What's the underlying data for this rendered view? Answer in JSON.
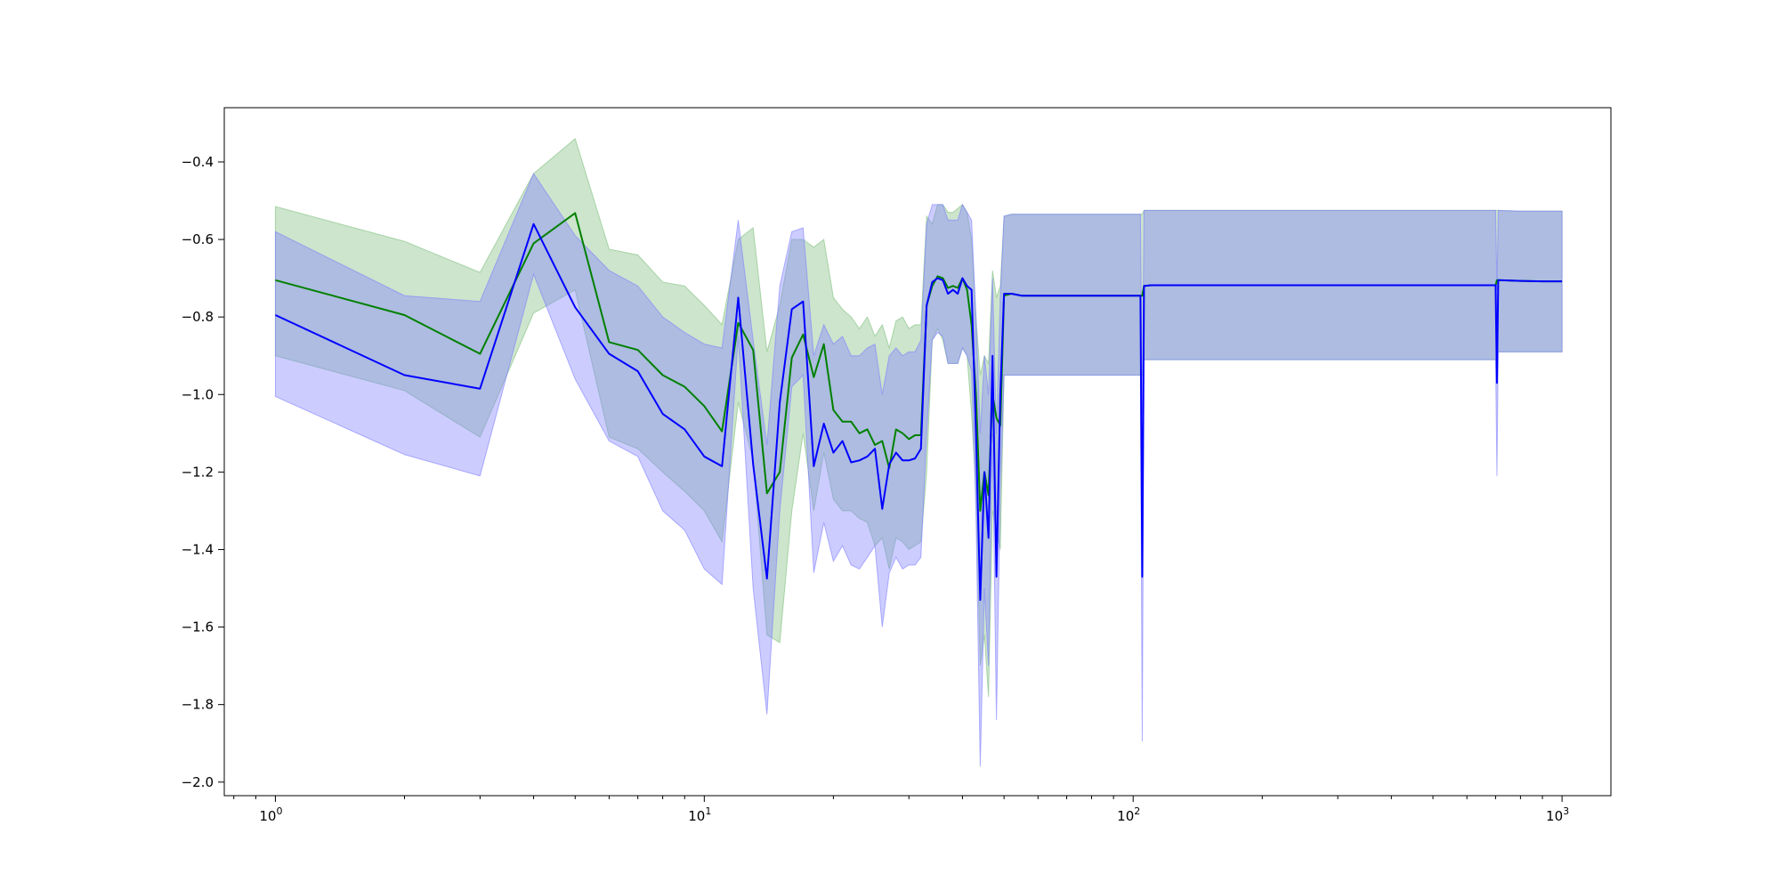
{
  "chart_data": {
    "type": "line",
    "title": "",
    "xlabel": "",
    "ylabel": "",
    "xscale": "log",
    "xlim": [
      0.76,
      1300
    ],
    "ylim": [
      -2.035,
      -0.26
    ],
    "grid": false,
    "legend": "none",
    "x_ticks": [
      {
        "value": 1,
        "base": "10",
        "exp": "0"
      },
      {
        "value": 10,
        "base": "10",
        "exp": "1"
      },
      {
        "value": 100,
        "base": "10",
        "exp": "2"
      },
      {
        "value": 1000,
        "base": "10",
        "exp": "3"
      }
    ],
    "y_ticks": [
      {
        "value": -0.4,
        "label": "−0.4"
      },
      {
        "value": -0.6,
        "label": "−0.6"
      },
      {
        "value": -0.8,
        "label": "−0.8"
      },
      {
        "value": -1.0,
        "label": "−1.0"
      },
      {
        "value": -1.2,
        "label": "−1.2"
      },
      {
        "value": -1.4,
        "label": "−1.4"
      },
      {
        "value": -1.6,
        "label": "−1.6"
      },
      {
        "value": -1.8,
        "label": "−1.8"
      },
      {
        "value": -2.0,
        "label": "−2.0"
      }
    ],
    "series": [
      {
        "color": "#008000",
        "band_color": "#7fbf7f",
        "band_opacity": 0.4,
        "x": [
          1,
          2,
          3,
          4,
          5,
          6,
          7,
          8,
          9,
          10,
          11,
          12,
          13,
          14,
          15,
          16,
          17,
          18,
          19,
          20,
          21,
          22,
          23,
          24,
          25,
          26,
          27,
          28,
          29,
          30,
          31,
          32,
          33,
          34,
          35,
          36,
          37,
          38,
          39,
          40,
          41,
          42,
          43,
          44,
          45,
          46,
          47,
          48,
          49,
          50,
          52,
          55,
          60,
          70,
          80,
          90,
          100,
          104,
          105,
          106,
          110,
          150,
          200,
          300,
          400,
          500,
          600,
          700,
          705,
          710,
          800,
          900,
          1000
        ],
        "y": [
          -0.705,
          -0.795,
          -0.895,
          -0.61,
          -0.532,
          -0.865,
          -0.885,
          -0.95,
          -0.98,
          -1.03,
          -1.095,
          -0.815,
          -0.885,
          -1.255,
          -1.2,
          -0.905,
          -0.845,
          -0.955,
          -0.87,
          -1.04,
          -1.07,
          -1.07,
          -1.1,
          -1.09,
          -1.13,
          -1.12,
          -1.19,
          -1.09,
          -1.1,
          -1.115,
          -1.105,
          -1.105,
          -0.77,
          -0.72,
          -0.695,
          -0.7,
          -0.725,
          -0.72,
          -0.725,
          -0.7,
          -0.73,
          -0.82,
          -1.0,
          -1.3,
          -1.2,
          -1.26,
          -1.0,
          -1.06,
          -1.08,
          -0.745,
          -0.74,
          -0.745,
          -0.745,
          -0.745,
          -0.745,
          -0.745,
          -0.745,
          -0.745,
          -0.745,
          -0.72,
          -0.718,
          -0.718,
          -0.718,
          -0.718,
          -0.718,
          -0.718,
          -0.718,
          -0.718,
          -0.705,
          -0.705,
          -0.707,
          -0.708,
          -0.708
        ],
        "lower": [
          -0.9,
          -0.99,
          -1.11,
          -0.79,
          -0.73,
          -1.11,
          -1.14,
          -1.2,
          -1.25,
          -1.3,
          -1.38,
          -1.02,
          -1.17,
          -1.62,
          -1.64,
          -1.3,
          -1.1,
          -1.3,
          -1.15,
          -1.27,
          -1.3,
          -1.3,
          -1.32,
          -1.33,
          -1.39,
          -1.37,
          -1.45,
          -1.37,
          -1.38,
          -1.4,
          -1.39,
          -1.38,
          -1.2,
          -0.86,
          -0.83,
          -0.86,
          -0.92,
          -0.92,
          -0.92,
          -0.88,
          -0.9,
          -1.05,
          -1.25,
          -1.7,
          -1.62,
          -1.78,
          -1.3,
          -1.35,
          -1.4,
          -0.95,
          -0.95,
          -0.95,
          -0.95,
          -0.95,
          -0.95,
          -0.95,
          -0.95,
          -0.95,
          -0.95,
          -0.91,
          -0.91,
          -0.91,
          -0.91,
          -0.91,
          -0.91,
          -0.91,
          -0.91,
          -0.91,
          -0.89,
          -0.89,
          -0.89,
          -0.89,
          -0.89
        ],
        "upper": [
          -0.515,
          -0.605,
          -0.685,
          -0.43,
          -0.34,
          -0.625,
          -0.64,
          -0.71,
          -0.72,
          -0.77,
          -0.82,
          -0.6,
          -0.57,
          -0.89,
          -0.77,
          -0.6,
          -0.6,
          -0.62,
          -0.6,
          -0.75,
          -0.78,
          -0.8,
          -0.83,
          -0.8,
          -0.85,
          -0.82,
          -0.88,
          -0.81,
          -0.8,
          -0.83,
          -0.82,
          -0.82,
          -0.54,
          -0.56,
          -0.51,
          -0.51,
          -0.53,
          -0.53,
          -0.52,
          -0.51,
          -0.53,
          -0.6,
          -0.8,
          -0.95,
          -0.9,
          -0.92,
          -0.68,
          -0.75,
          -0.72,
          -0.54,
          -0.535,
          -0.535,
          -0.535,
          -0.535,
          -0.535,
          -0.535,
          -0.535,
          -0.535,
          -0.535,
          -0.525,
          -0.525,
          -0.525,
          -0.525,
          -0.525,
          -0.525,
          -0.525,
          -0.525,
          -0.525,
          -0.525,
          -0.525,
          -0.527,
          -0.527,
          -0.527
        ]
      },
      {
        "color": "#0000ff",
        "band_color": "#7f7fff",
        "band_opacity": 0.4,
        "x": [
          1,
          2,
          3,
          4,
          5,
          6,
          7,
          8,
          9,
          10,
          11,
          12,
          13,
          14,
          15,
          16,
          17,
          18,
          19,
          20,
          21,
          22,
          23,
          24,
          25,
          26,
          27,
          28,
          29,
          30,
          31,
          32,
          33,
          34,
          35,
          36,
          37,
          38,
          39,
          40,
          41,
          42,
          43,
          44,
          45,
          46,
          47,
          48,
          49,
          50,
          52,
          55,
          60,
          70,
          80,
          90,
          100,
          104,
          105,
          106,
          110,
          150,
          200,
          300,
          400,
          500,
          600,
          700,
          705,
          710,
          800,
          900,
          1000
        ],
        "y": [
          -0.795,
          -0.95,
          -0.985,
          -0.56,
          -0.775,
          -0.895,
          -0.94,
          -1.05,
          -1.09,
          -1.16,
          -1.185,
          -0.75,
          -1.18,
          -1.475,
          -1.02,
          -0.78,
          -0.76,
          -1.185,
          -1.075,
          -1.15,
          -1.12,
          -1.175,
          -1.17,
          -1.16,
          -1.14,
          -1.295,
          -1.18,
          -1.15,
          -1.17,
          -1.17,
          -1.165,
          -1.14,
          -0.77,
          -0.71,
          -0.7,
          -0.705,
          -0.74,
          -0.73,
          -0.74,
          -0.7,
          -0.72,
          -0.73,
          -1.1,
          -1.53,
          -1.2,
          -1.37,
          -0.9,
          -1.47,
          -1.0,
          -0.74,
          -0.74,
          -0.745,
          -0.745,
          -0.745,
          -0.745,
          -0.745,
          -0.745,
          -0.745,
          -1.47,
          -0.72,
          -0.718,
          -0.718,
          -0.718,
          -0.718,
          -0.718,
          -0.718,
          -0.718,
          -0.718,
          -0.97,
          -0.705,
          -0.707,
          -0.708,
          -0.708
        ],
        "lower": [
          -1.005,
          -1.155,
          -1.21,
          -0.69,
          -0.96,
          -1.12,
          -1.16,
          -1.3,
          -1.35,
          -1.45,
          -1.49,
          -0.85,
          -1.5,
          -1.825,
          -1.3,
          -0.98,
          -0.95,
          -1.46,
          -1.33,
          -1.43,
          -1.39,
          -1.44,
          -1.45,
          -1.42,
          -1.39,
          -1.6,
          -1.46,
          -1.42,
          -1.45,
          -1.44,
          -1.44,
          -1.42,
          -1.1,
          -0.86,
          -0.84,
          -0.85,
          -0.92,
          -0.92,
          -0.92,
          -0.88,
          -0.9,
          -0.94,
          -1.3,
          -1.96,
          -1.5,
          -1.7,
          -1.1,
          -1.84,
          -1.25,
          -0.95,
          -0.95,
          -0.95,
          -0.95,
          -0.95,
          -0.95,
          -0.95,
          -0.95,
          -0.95,
          -1.895,
          -0.91,
          -0.91,
          -0.91,
          -0.91,
          -0.91,
          -0.91,
          -0.91,
          -0.91,
          -0.91,
          -1.21,
          -0.89,
          -0.89,
          -0.89,
          -0.89
        ],
        "upper": [
          -0.58,
          -0.745,
          -0.76,
          -0.43,
          -0.59,
          -0.68,
          -0.72,
          -0.8,
          -0.84,
          -0.87,
          -0.88,
          -0.55,
          -0.86,
          -1.13,
          -0.72,
          -0.58,
          -0.57,
          -0.9,
          -0.82,
          -0.87,
          -0.85,
          -0.9,
          -0.9,
          -0.88,
          -0.87,
          -1.0,
          -0.9,
          -0.88,
          -0.9,
          -0.89,
          -0.89,
          -0.86,
          -0.56,
          -0.51,
          -0.51,
          -0.51,
          -0.55,
          -0.55,
          -0.55,
          -0.51,
          -0.53,
          -0.55,
          -0.8,
          -1.1,
          -0.9,
          -1.0,
          -0.7,
          -1.1,
          -0.75,
          -0.54,
          -0.535,
          -0.535,
          -0.535,
          -0.535,
          -0.535,
          -0.535,
          -0.535,
          -0.535,
          -1.05,
          -0.525,
          -0.525,
          -0.525,
          -0.525,
          -0.525,
          -0.525,
          -0.525,
          -0.525,
          -0.525,
          -0.73,
          -0.525,
          -0.527,
          -0.527,
          -0.527
        ]
      }
    ]
  }
}
